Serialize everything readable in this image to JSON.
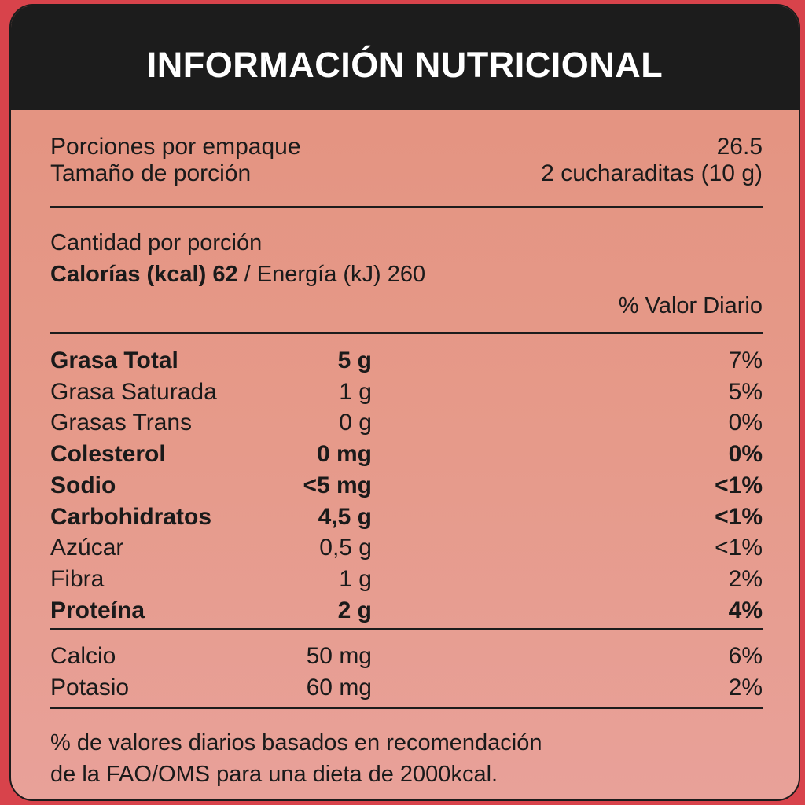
{
  "title": "INFORMACIÓN NUTRICIONAL",
  "servings": {
    "per_package_label": "Porciones por empaque",
    "per_package_value": "26.5",
    "size_label": "Tamaño de porción",
    "size_value": "2 cucharaditas (10 g)"
  },
  "amount_per_serving_label": "Cantidad por porción",
  "calories": {
    "label": "Calorías (kcal) 62",
    "energy": " / Energía (kJ) 260"
  },
  "daily_value_header": "% Valor Diario",
  "nutrients": [
    {
      "name": "Grasa Total",
      "amount": "5 g",
      "dv": "7%",
      "bold": true,
      "bold_dv": false
    },
    {
      "name": "Grasa Saturada",
      "amount": "1 g",
      "dv": "5%",
      "bold": false,
      "bold_dv": false
    },
    {
      "name": "Grasas Trans",
      "amount": "0 g",
      "dv": "0%",
      "bold": false,
      "bold_dv": false
    },
    {
      "name": "Colesterol",
      "amount": "0 mg",
      "dv": "0%",
      "bold": true,
      "bold_dv": true
    },
    {
      "name": "Sodio",
      "amount": "<5 mg",
      "dv": "<1%",
      "bold": true,
      "bold_dv": true
    },
    {
      "name": "Carbohidratos",
      "amount": "4,5 g",
      "dv": "<1%",
      "bold": true,
      "bold_dv": true
    },
    {
      "name": "Azúcar",
      "amount": "0,5 g",
      "dv": "<1%",
      "bold": false,
      "bold_dv": false
    },
    {
      "name": "Fibra",
      "amount": "1 g",
      "dv": "2%",
      "bold": false,
      "bold_dv": false
    },
    {
      "name": "Proteína",
      "amount": "2 g",
      "dv": "4%",
      "bold": true,
      "bold_dv": true
    }
  ],
  "minerals": [
    {
      "name": "Calcio",
      "amount": "50 mg",
      "dv": "6%"
    },
    {
      "name": "Potasio",
      "amount": "60 mg",
      "dv": "2%"
    }
  ],
  "footnote": {
    "line1": "% de valores diarios basados en recomendación",
    "line2": "de la FAO/OMS para una dieta de 2000kcal."
  },
  "colors": {
    "background": "#d8434b",
    "header": "#1c1c1c",
    "panel": "#e3927f"
  }
}
